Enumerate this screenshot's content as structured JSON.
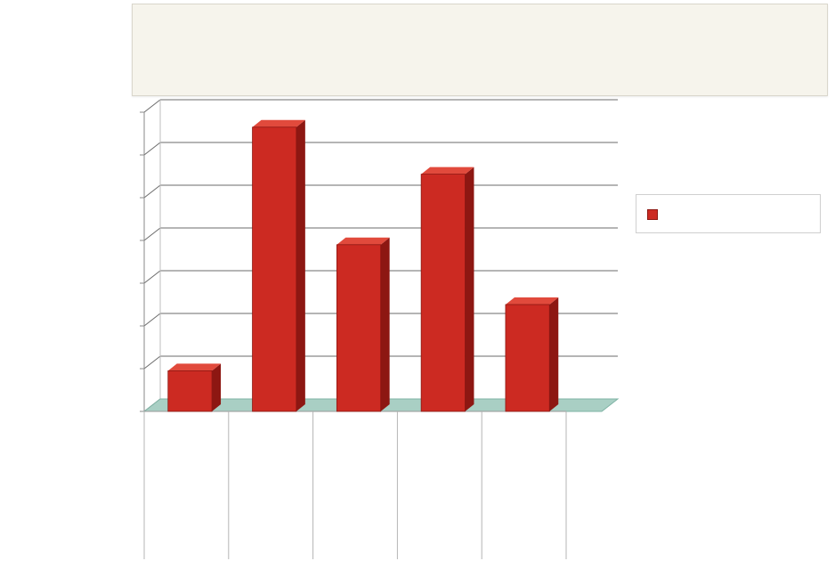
{
  "chart_data": {
    "type": "bar",
    "title": "",
    "categories": [
      "",
      "",
      "",
      "",
      ""
    ],
    "sub_categories": [
      "",
      "",
      "",
      "",
      ""
    ],
    "series": [
      {
        "values": [
          95000,
          665000,
          390000,
          555000,
          250000
        ],
        "color": "#cc2a22"
      }
    ],
    "ylim": [
      0,
      700000
    ],
    "y_ticks": [
      0,
      100000,
      200000,
      300000,
      400000,
      500000,
      600000,
      700000
    ],
    "y_tick_labels": [
      "",
      "",
      "",
      "",
      "",
      "",
      "",
      ""
    ],
    "grid": true,
    "legend": "right",
    "colors": {
      "bar": "#cc2a22",
      "bar_dark": "#8d1712",
      "bar_top": "#e14a3c",
      "floor": "#a9cfc4"
    }
  }
}
